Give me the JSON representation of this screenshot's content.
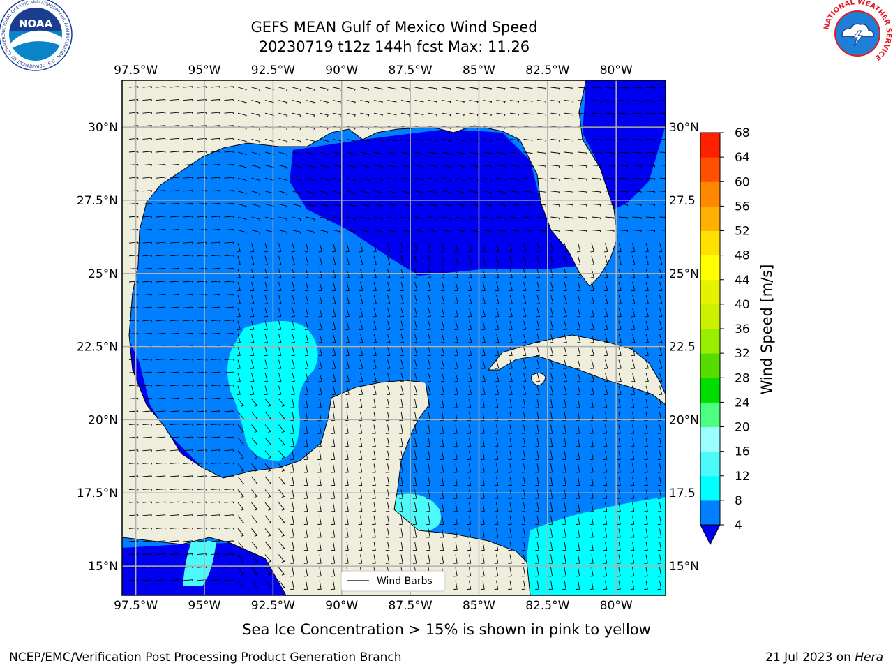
{
  "title": {
    "line1": "GEFS MEAN Gulf of Mexico Wind Speed",
    "line2": "20230719 t12z 144h fcst   Max: 11.26"
  },
  "map": {
    "lon_labels": [
      "97.5°W",
      "95°W",
      "92.5°W",
      "90°W",
      "87.5°W",
      "85°W",
      "82.5°W",
      "80°W"
    ],
    "lon_values": [
      -97.5,
      -95,
      -92.5,
      -90,
      -87.5,
      -85,
      -82.5,
      -80
    ],
    "lat_labels": [
      "30°N",
      "27.5°N",
      "25°N",
      "22.5°N",
      "20°N",
      "17.5°N",
      "15°N"
    ],
    "lat_labels_right": [
      "30°N",
      "27.5",
      "25°N",
      "22.5",
      "20°N",
      "17.5",
      "15°N"
    ],
    "lat_values": [
      30,
      27.5,
      25,
      22.5,
      20,
      17.5,
      15
    ],
    "extent": {
      "lon_min": -98,
      "lon_max": -78.2,
      "lat_min": 14,
      "lat_max": 31.6
    },
    "legend_label": "Wind Barbs",
    "colors": {
      "land": "#efeedc",
      "level_4_8": "#0080ff",
      "below_4": "#0000f0",
      "level_8_12": "#00ffff",
      "level_12_16": "#4dfafa",
      "grid": "#b0b0b0"
    }
  },
  "colorbar": {
    "label": "Wind Speed [m/s]",
    "ticks": [
      "4",
      "8",
      "12",
      "16",
      "20",
      "24",
      "28",
      "32",
      "36",
      "40",
      "44",
      "48",
      "52",
      "56",
      "60",
      "64",
      "68"
    ],
    "colors": [
      "#0080ff",
      "#00ffff",
      "#4dfafa",
      "#99ffff",
      "#4dff80",
      "#00dd00",
      "#55dd00",
      "#99ee00",
      "#ccf000",
      "#e6f200",
      "#ffff00",
      "#ffe000",
      "#ffb000",
      "#ff8800",
      "#ff5000",
      "#ff2000"
    ],
    "extend_color": "#0000f0"
  },
  "footer": {
    "note": "Sea Ice Concentration > 15% is shown in pink to yellow",
    "credit_left": "NCEP/EMC/Verification Post Processing Product Generation Branch",
    "credit_date": "21 Jul 2023 on",
    "credit_host": "Hera"
  },
  "logos": {
    "noaa_text": "NOAA",
    "noaa_ring_text": "NATIONAL OCEANIC AND ATMOSPHERIC ADMINISTRATION · U.S. DEPARTMENT OF COMMERCE",
    "nws_ring_text": "NATIONAL WEATHER SERVICE"
  }
}
